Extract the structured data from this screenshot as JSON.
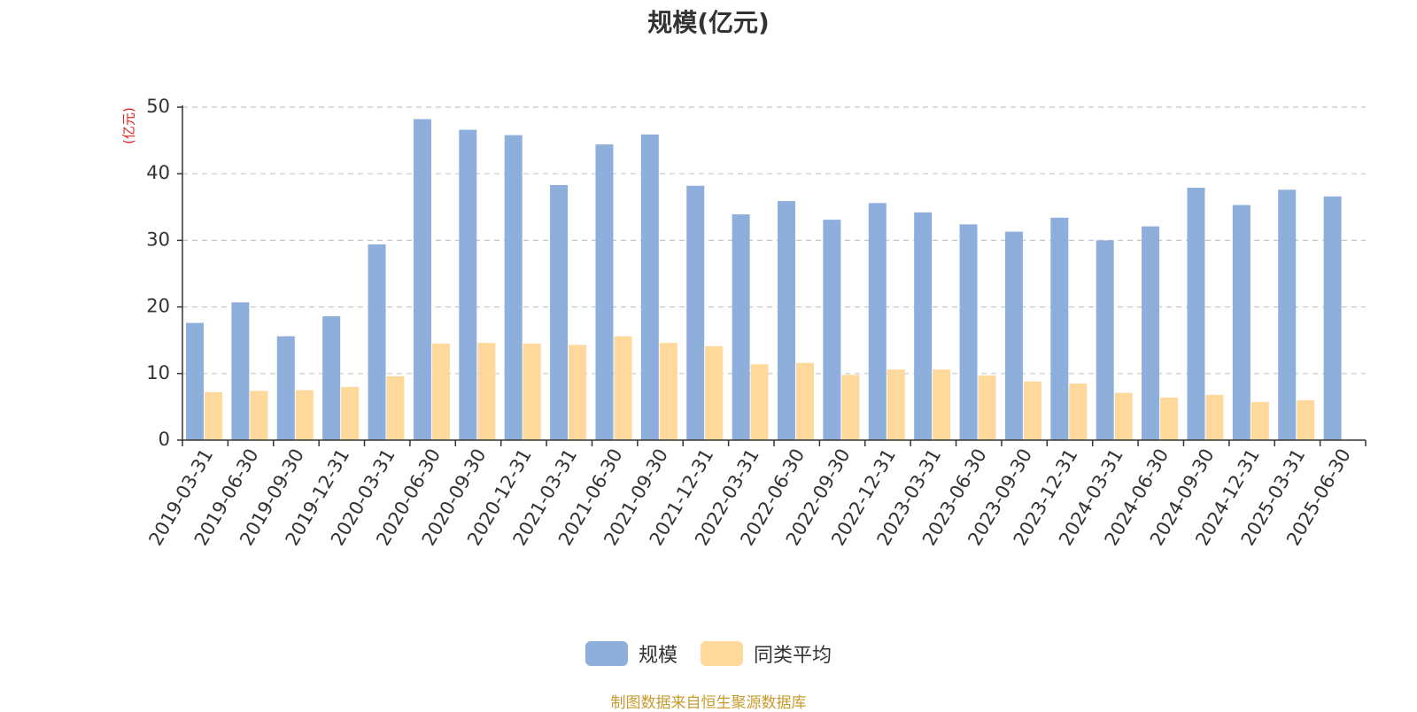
{
  "chart_data": {
    "type": "bar",
    "title": "规模(亿元)",
    "ylabel": "(亿元)",
    "xlabel": "",
    "ylim": [
      0,
      50
    ],
    "yticks": [
      0,
      10,
      20,
      30,
      40,
      50
    ],
    "grid": true,
    "legend_position": "bottom",
    "categories": [
      "2019-03-31",
      "2019-06-30",
      "2019-09-30",
      "2019-12-31",
      "2020-03-31",
      "2020-06-30",
      "2020-09-30",
      "2020-12-31",
      "2021-03-31",
      "2021-06-30",
      "2021-09-30",
      "2021-12-31",
      "2022-03-31",
      "2022-06-30",
      "2022-09-30",
      "2022-12-31",
      "2023-03-31",
      "2023-06-30",
      "2023-09-30",
      "2023-12-31",
      "2024-03-31",
      "2024-06-30",
      "2024-09-30",
      "2024-12-31",
      "2025-03-31",
      "2025-06-30"
    ],
    "series": [
      {
        "name": "规模",
        "color": "#8eaedb",
        "values": [
          17.6,
          20.7,
          15.6,
          18.6,
          29.4,
          48.2,
          46.6,
          45.8,
          38.3,
          44.4,
          45.9,
          38.2,
          33.9,
          35.9,
          33.1,
          35.6,
          34.2,
          32.4,
          31.3,
          33.4,
          30.0,
          32.1,
          37.9,
          35.3,
          37.6,
          36.6
        ]
      },
      {
        "name": "同类平均",
        "color": "#fed99b",
        "values": [
          7.2,
          7.4,
          7.5,
          8.0,
          9.6,
          14.5,
          14.6,
          14.5,
          14.3,
          15.6,
          14.6,
          14.1,
          11.4,
          11.6,
          9.8,
          10.6,
          10.6,
          9.7,
          8.8,
          8.5,
          7.1,
          6.4,
          6.8,
          5.7,
          6.0,
          null
        ]
      }
    ]
  },
  "source_note": "制图数据来自恒生聚源数据库"
}
